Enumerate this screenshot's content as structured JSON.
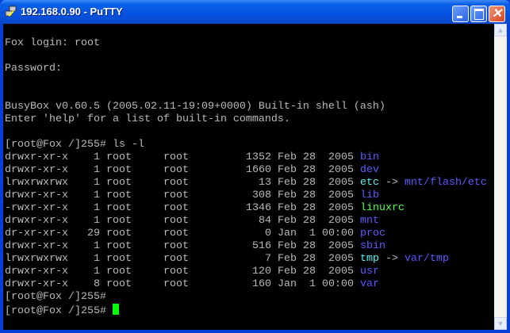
{
  "window": {
    "title": "192.168.0.90 - PuTTY",
    "minimize_icon": "minimize-icon",
    "maximize_icon": "maximize-icon",
    "close_icon": "close-icon"
  },
  "colors": {
    "text": "#bbbbbb",
    "dir": "#5c5cff",
    "link": "#5cf0f0",
    "exec": "#55ff55",
    "cursor": "#00ff00"
  },
  "terminal": {
    "pre_lines": [
      "",
      "Fox login: root",
      "",
      "Password:",
      "",
      "",
      "BusyBox v0.60.5 (2005.02.11-19:09+0000) Built-in shell (ash)",
      "Enter 'help' for a list of built-in commands.",
      "",
      "[root@Fox /]255# ls -l"
    ],
    "listing": [
      {
        "perms": "drwxr-xr-x",
        "links": "1",
        "owner": "root",
        "group": "root",
        "size": "1352",
        "date": "Feb 28  2005",
        "name": "bin",
        "kind": "dir",
        "target": ""
      },
      {
        "perms": "drwxr-xr-x",
        "links": "1",
        "owner": "root",
        "group": "root",
        "size": "1660",
        "date": "Feb 28  2005",
        "name": "dev",
        "kind": "dir",
        "target": ""
      },
      {
        "perms": "lrwxrwxrwx",
        "links": "1",
        "owner": "root",
        "group": "root",
        "size": "13",
        "date": "Feb 28  2005",
        "name": "etc",
        "kind": "link",
        "target": "mnt/flash/etc"
      },
      {
        "perms": "drwxr-xr-x",
        "links": "1",
        "owner": "root",
        "group": "root",
        "size": "308",
        "date": "Feb 28  2005",
        "name": "lib",
        "kind": "dir",
        "target": ""
      },
      {
        "perms": "-rwxr-xr-x",
        "links": "1",
        "owner": "root",
        "group": "root",
        "size": "1346",
        "date": "Feb 28  2005",
        "name": "linuxrc",
        "kind": "exec",
        "target": ""
      },
      {
        "perms": "drwxr-xr-x",
        "links": "1",
        "owner": "root",
        "group": "root",
        "size": "84",
        "date": "Feb 28  2005",
        "name": "mnt",
        "kind": "dir",
        "target": ""
      },
      {
        "perms": "dr-xr-xr-x",
        "links": "29",
        "owner": "root",
        "group": "root",
        "size": "0",
        "date": "Jan  1 00:00",
        "name": "proc",
        "kind": "dir",
        "target": ""
      },
      {
        "perms": "drwxr-xr-x",
        "links": "1",
        "owner": "root",
        "group": "root",
        "size": "516",
        "date": "Feb 28  2005",
        "name": "sbin",
        "kind": "dir",
        "target": ""
      },
      {
        "perms": "lrwxrwxrwx",
        "links": "1",
        "owner": "root",
        "group": "root",
        "size": "7",
        "date": "Feb 28  2005",
        "name": "tmp",
        "kind": "link",
        "target": "var/tmp"
      },
      {
        "perms": "drwxr-xr-x",
        "links": "1",
        "owner": "root",
        "group": "root",
        "size": "120",
        "date": "Feb 28  2005",
        "name": "usr",
        "kind": "dir",
        "target": ""
      },
      {
        "perms": "drwxr-xr-x",
        "links": "8",
        "owner": "root",
        "group": "root",
        "size": "160",
        "date": "Jan  1 00:00",
        "name": "var",
        "kind": "dir",
        "target": ""
      }
    ],
    "post_lines": [
      "[root@Fox /]255#",
      "[root@Fox /]255# "
    ],
    "link_arrow": " -> "
  }
}
